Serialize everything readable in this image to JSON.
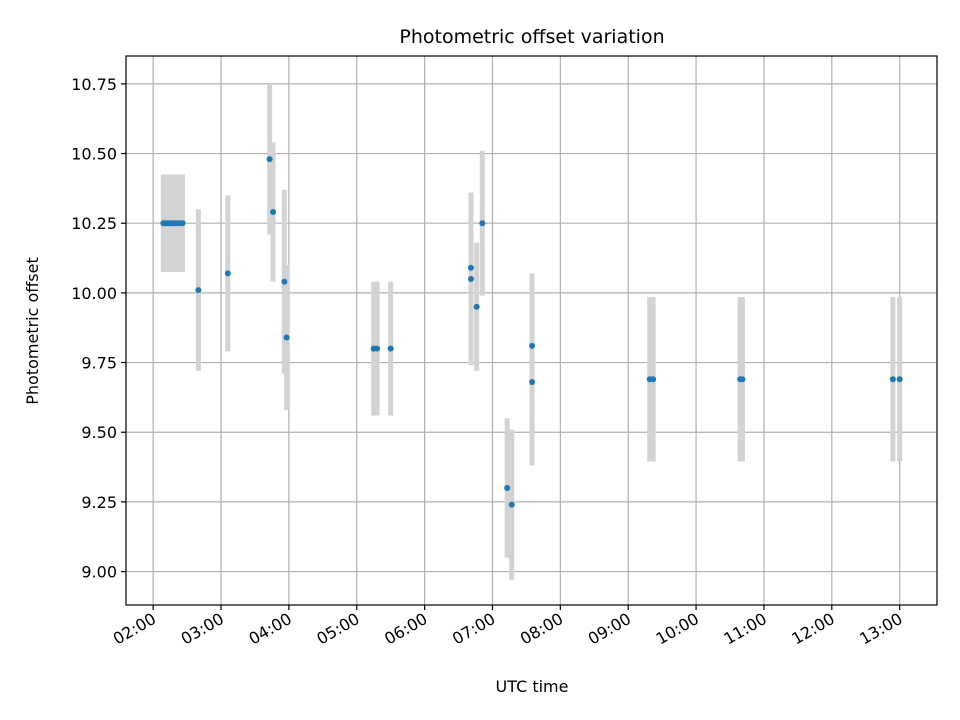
{
  "chart_data": {
    "type": "scatter",
    "title": "Photometric offset variation",
    "xlabel": "UTC time",
    "ylabel": "Photometric offset",
    "x_ticks": [
      "02:00",
      "03:00",
      "04:00",
      "05:00",
      "06:00",
      "07:00",
      "08:00",
      "09:00",
      "10:00",
      "11:00",
      "12:00",
      "13:00"
    ],
    "y_ticks": [
      "9.00",
      "9.25",
      "9.50",
      "9.75",
      "10.00",
      "10.25",
      "10.50",
      "10.75"
    ],
    "xlim": [
      "01:36",
      "13:33"
    ],
    "ylim": [
      8.88,
      10.85
    ],
    "grid": true,
    "colors": {
      "point": "#1f77b4",
      "errorbar": "#d3d3d3",
      "grid": "#b0b0b0"
    },
    "points": [
      {
        "x": "02:09",
        "y": 10.25,
        "err": 0.175
      },
      {
        "x": "02:11",
        "y": 10.25,
        "err": 0.175
      },
      {
        "x": "02:13",
        "y": 10.25,
        "err": 0.175
      },
      {
        "x": "02:15",
        "y": 10.25,
        "err": 0.175
      },
      {
        "x": "02:17",
        "y": 10.25,
        "err": 0.175
      },
      {
        "x": "02:19",
        "y": 10.25,
        "err": 0.175
      },
      {
        "x": "02:21",
        "y": 10.25,
        "err": 0.175
      },
      {
        "x": "02:23",
        "y": 10.25,
        "err": 0.175
      },
      {
        "x": "02:26",
        "y": 10.25,
        "err": 0.175
      },
      {
        "x": "02:40",
        "y": 10.01,
        "err": 0.29
      },
      {
        "x": "03:06",
        "y": 10.07,
        "err": 0.28
      },
      {
        "x": "03:43",
        "y": 10.48,
        "err": 0.27
      },
      {
        "x": "03:46",
        "y": 10.29,
        "err": 0.25
      },
      {
        "x": "03:56",
        "y": 10.04,
        "err": 0.33
      },
      {
        "x": "03:58",
        "y": 9.84,
        "err": 0.26
      },
      {
        "x": "05:15",
        "y": 9.8,
        "err": 0.24
      },
      {
        "x": "05:18",
        "y": 9.8,
        "err": 0.24
      },
      {
        "x": "05:30",
        "y": 9.8,
        "err": 0.24
      },
      {
        "x": "06:41",
        "y": 10.09,
        "err": 0.27
      },
      {
        "x": "06:41",
        "y": 10.05,
        "err": 0.31
      },
      {
        "x": "06:46",
        "y": 9.95,
        "err": 0.23
      },
      {
        "x": "06:51",
        "y": 10.25,
        "err": 0.26
      },
      {
        "x": "07:13",
        "y": 9.3,
        "err": 0.25
      },
      {
        "x": "07:17",
        "y": 9.24,
        "err": 0.27
      },
      {
        "x": "07:35",
        "y": 9.81,
        "err": 0.26
      },
      {
        "x": "07:35",
        "y": 9.68,
        "err": 0.3
      },
      {
        "x": "09:19",
        "y": 9.69,
        "err": 0.295
      },
      {
        "x": "09:22",
        "y": 9.69,
        "err": 0.295
      },
      {
        "x": "10:39",
        "y": 9.69,
        "err": 0.295
      },
      {
        "x": "10:41",
        "y": 9.69,
        "err": 0.295
      },
      {
        "x": "12:54",
        "y": 9.69,
        "err": 0.295
      },
      {
        "x": "13:00",
        "y": 9.69,
        "err": 0.295
      }
    ]
  }
}
